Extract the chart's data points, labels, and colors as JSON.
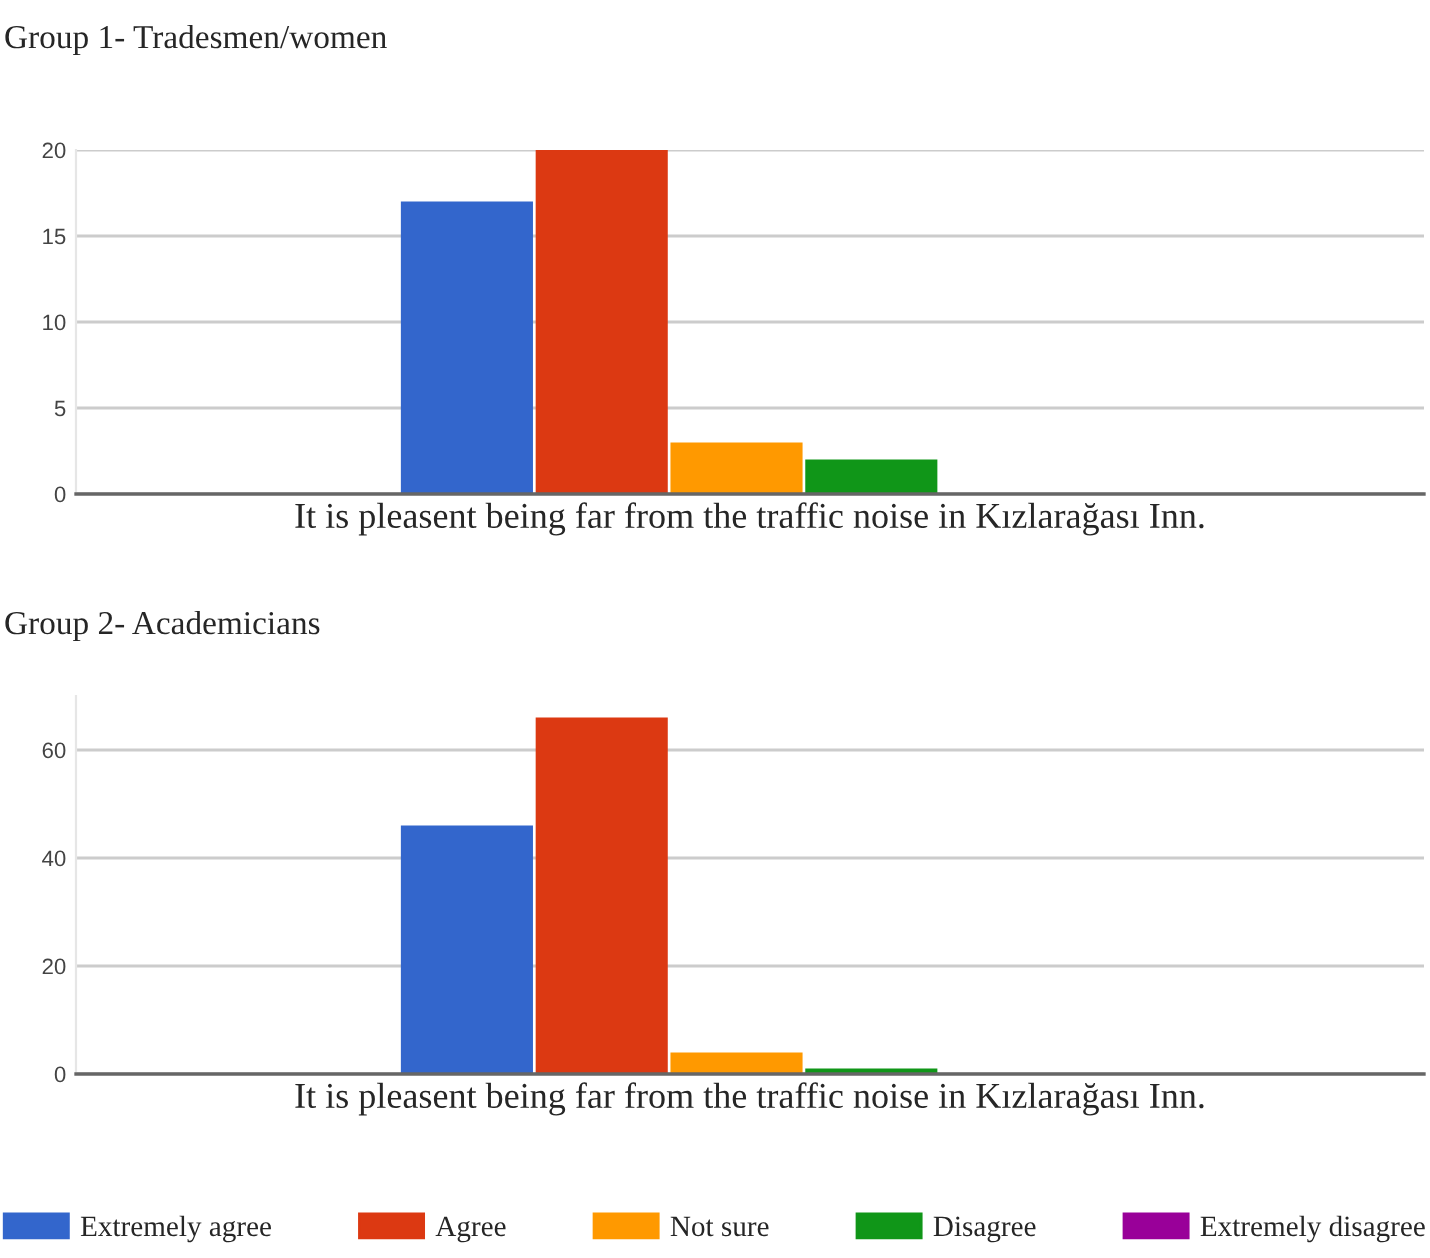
{
  "chart_data": [
    {
      "type": "bar",
      "title": "Group 1- Tradesmen/women",
      "categories": [
        "It is pleasent being far from the traffic noise in Kızlarağası Inn."
      ],
      "series": [
        {
          "color": "#3366cc",
          "values": [
            17
          ]
        },
        {
          "color": "#dc3912",
          "values": [
            20
          ]
        },
        {
          "color": "#ff9900",
          "values": [
            3
          ]
        },
        {
          "color": "#109618",
          "values": [
            2
          ]
        },
        {
          "color": "#990099",
          "values": [
            0
          ]
        }
      ],
      "ylim": [
        0,
        20
      ],
      "yticks": [
        0,
        5,
        10,
        15,
        20
      ],
      "grid": "y"
    },
    {
      "type": "bar",
      "title": "Group 2- Academicians",
      "categories": [
        "It is pleasent being far from the traffic noise in Kızlarağası Inn."
      ],
      "series": [
        {
          "name": "Extremely agree",
          "color": "#3366cc",
          "values": [
            46
          ]
        },
        {
          "name": "Agree",
          "color": "#dc3912",
          "values": [
            66
          ]
        },
        {
          "name": "Not sure",
          "color": "#ff9900",
          "values": [
            4
          ]
        },
        {
          "name": "Disagree",
          "color": "#109618",
          "values": [
            1
          ]
        },
        {
          "name": "Extremely disagree",
          "color": "#990099",
          "values": [
            0
          ]
        }
      ],
      "ylim": [
        0,
        70
      ],
      "yticks": [
        0,
        20,
        40,
        60
      ],
      "grid": "y",
      "legend": "bottom"
    }
  ]
}
